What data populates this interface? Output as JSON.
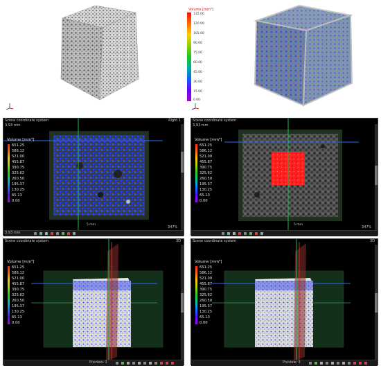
{
  "legend_top": {
    "title": "Volume [mm³]",
    "ticks": [
      "135.00",
      "120.00",
      "105.00",
      "90.00",
      "75.00",
      "60.00",
      "45.00",
      "30.00",
      "15.00",
      "0.00"
    ]
  },
  "panels": {
    "slice_left": {
      "header": "Scene coordinate system",
      "sub": "3.93 mm",
      "tag": "Right 1",
      "zoom": "347%",
      "scale": "5 mm",
      "field": "3.93 mm"
    },
    "slice_right": {
      "header": "Scene coordinate system",
      "sub": "3.93 mm",
      "tag": "",
      "zoom": "347%",
      "scale": "5 mm",
      "field": ""
    },
    "view3d_left": {
      "header": "Scene coordinate system",
      "tag": "3D"
    },
    "view3d_right": {
      "header": "Scene coordinate system",
      "tag": "3D",
      "preview": "Preview:  3"
    }
  },
  "legend": {
    "title": "Volume [mm³]",
    "ticks": [
      "651.25",
      "586.12",
      "521.00",
      "455.87",
      "390.75",
      "325.62",
      "260.50",
      "195.37",
      "130.25",
      "65.13",
      "0.00"
    ]
  },
  "colors": {
    "accent": "#2a6bff",
    "red_region": "#ff2020",
    "panel_bg": "#000000"
  }
}
